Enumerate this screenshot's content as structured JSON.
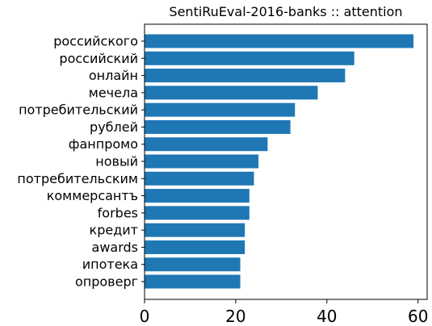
{
  "chart_data": {
    "type": "bar",
    "orientation": "horizontal",
    "title": "SentiRuEval-2016-banks :: attention",
    "xlabel": "",
    "ylabel": "",
    "categories": [
      "российского",
      "российский",
      "онлайн",
      "мечела",
      "потребительский",
      "рублей",
      "фанпромо",
      "новый",
      "потребительским",
      "коммерсантъ",
      "forbes",
      "кредит",
      "awards",
      "ипотека",
      "опроверг"
    ],
    "values": [
      59,
      46,
      44,
      38,
      33,
      32,
      27,
      25,
      24,
      23,
      23,
      22,
      22,
      21,
      21
    ],
    "xlim": [
      0,
      62
    ],
    "xticks": [
      0,
      20,
      40,
      60
    ],
    "grid": false,
    "legend": "none",
    "bar_color": "#1f77b4"
  }
}
